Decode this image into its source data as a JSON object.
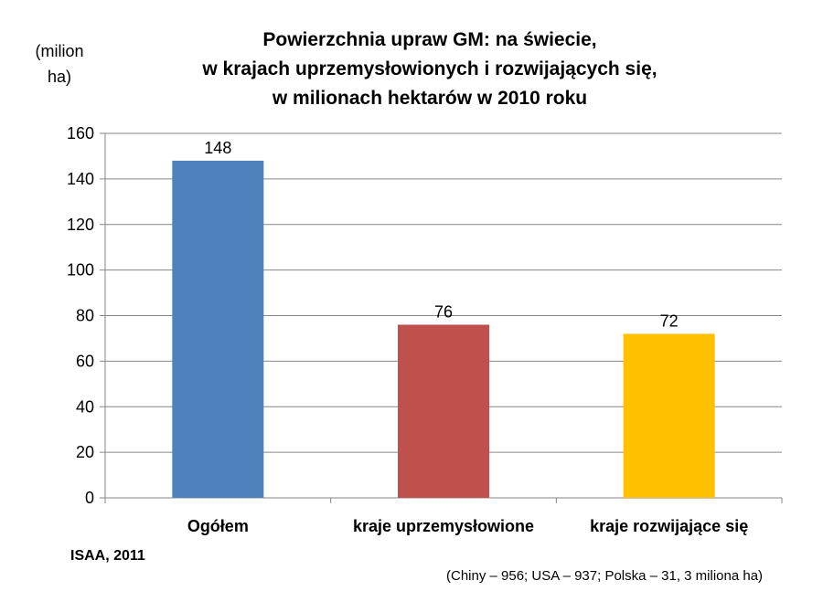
{
  "chart_data": {
    "type": "bar",
    "title": "Powierzchnia upraw GM: na świecie,\nw krajach uprzemysłowionych i rozwijających się,\nw milionach hektarów w 2010 roku",
    "title_lines": [
      "Powierzchnia upraw GM: na świecie,",
      "w krajach uprzemysłowionych i rozwijających się,",
      "w milionach hektarów w 2010 roku"
    ],
    "ylabel_lines": [
      "(milion",
      "ha)"
    ],
    "categories": [
      "Ogółem",
      "kraje uprzemysłowione",
      "kraje rozwijające się"
    ],
    "values": [
      148,
      76,
      72
    ],
    "colors": [
      "#4f81bd",
      "#c0504d",
      "#ffc000"
    ],
    "ylim": [
      0,
      160
    ],
    "yticks": [
      0,
      20,
      40,
      60,
      80,
      100,
      120,
      140,
      160
    ],
    "grid": true,
    "legend": "none",
    "data_labels": true
  },
  "source": "ISAA, 2011",
  "note": "(Chiny – 956; USA – 937; Polska – 31, 3 miliona ha)"
}
